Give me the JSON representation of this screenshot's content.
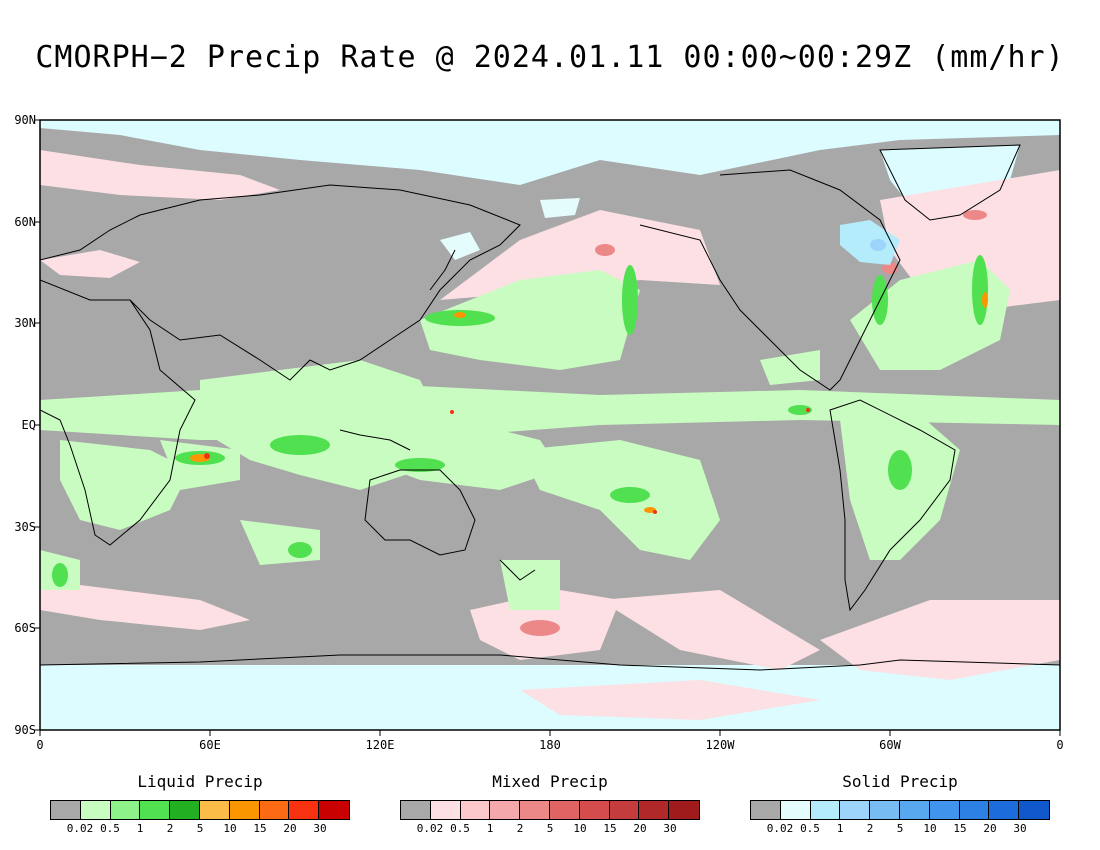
{
  "title": "CMORPH−2 Precip Rate @ 2024.01.11 00:00~00:29Z (mm/hr)",
  "lat_labels": [
    "90N",
    "60N",
    "30N",
    "EQ",
    "30S",
    "60S",
    "90S"
  ],
  "lon_labels": [
    "0",
    "60E",
    "120E",
    "180",
    "120W",
    "60W",
    "0"
  ],
  "colors": {
    "no_precip": "#a8a8a8",
    "ice_surface": "#dcfcff",
    "coastline": "#000000"
  },
  "legends": [
    {
      "title": "Liquid Precip",
      "colors": [
        "#a8a8a8",
        "#c8fcc0",
        "#8ef28a",
        "#50e050",
        "#22b022",
        "#fcbc48",
        "#fc9600",
        "#fc6a14",
        "#f83210",
        "#c80000"
      ],
      "ticks": [
        "0.02",
        "0.5",
        "1",
        "2",
        "5",
        "10",
        "15",
        "20",
        "30"
      ]
    },
    {
      "title": "Mixed Precip",
      "colors": [
        "#a8a8a8",
        "#fce0e4",
        "#fcc8cc",
        "#f4a8ac",
        "#ec8888",
        "#e06464",
        "#d44c4c",
        "#c43c3c",
        "#b02828",
        "#a01c1c"
      ],
      "ticks": [
        "0.02",
        "0.5",
        "1",
        "2",
        "5",
        "10",
        "15",
        "20",
        "30"
      ]
    },
    {
      "title": "Solid Precip",
      "colors": [
        "#a8a8a8",
        "#e4fcfc",
        "#b4ecfc",
        "#9cd4fc",
        "#78bcf4",
        "#58a8f0",
        "#4094ec",
        "#2c80e4",
        "#1c6cdc",
        "#1058cc"
      ],
      "ticks": [
        "0.02",
        "0.5",
        "1",
        "2",
        "5",
        "10",
        "15",
        "20",
        "30"
      ]
    }
  ]
}
